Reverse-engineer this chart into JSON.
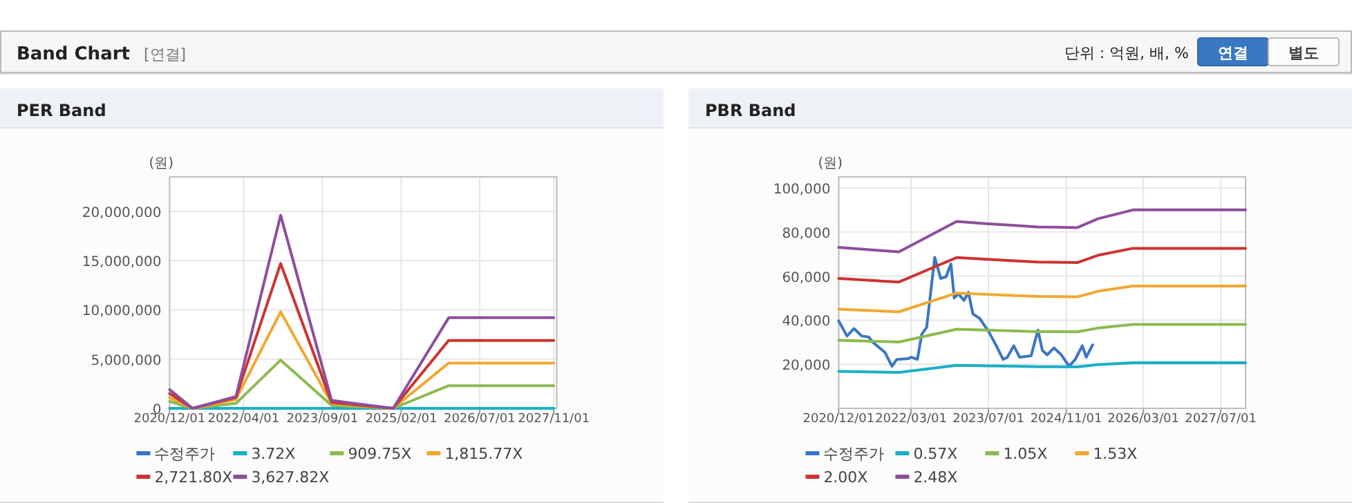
{
  "chart_data": [
    {
      "type": "other",
      "title": "Band Chart",
      "subtitle": "[연결]",
      "annotations": [
        "단위 : 억원, 배, %",
        "연결",
        "별도"
      ]
    },
    {
      "type": "line",
      "title": "PER Band",
      "ylabel": "(원)",
      "legend": "bottom",
      "grid": true,
      "xlim": [
        "2020-12-01",
        "2027-11-20"
      ],
      "xticks": [
        {
          "value": "2020-12-01",
          "label": "2020/12/01"
        },
        {
          "value": "2022-04-01",
          "label": "2022/04/01"
        },
        {
          "value": "2023-09-01",
          "label": "2023/09/01"
        },
        {
          "value": "2025-02-01",
          "label": "2025/02/01"
        },
        {
          "value": "2026-07-01",
          "label": "2026/07/01"
        },
        {
          "value": "2027-11-01",
          "label": "2027/11/01"
        }
      ],
      "ylim": [
        0,
        23500000
      ],
      "yticks": [
        {
          "value": 0,
          "label": "0"
        },
        {
          "value": 5000000,
          "label": "5,000,000"
        },
        {
          "value": 10000000,
          "label": "10,000,000"
        },
        {
          "value": 15000000,
          "label": "15,000,000"
        },
        {
          "value": 20000000,
          "label": "20,000,000"
        }
      ],
      "series": [
        {
          "name": "수정주가",
          "color": "#3b75c4"
        },
        {
          "name": "3.72X",
          "color": "#1aafc6",
          "x": [
            "2020-12-01",
            "2027-11-01"
          ],
          "values": [
            0,
            0
          ]
        },
        {
          "name": "909.75X",
          "color": "#8cba4f",
          "x": [
            "2020-12-01",
            "2021-05-01",
            "2022-02-10",
            "2022-12-01",
            "2023-11-01",
            "2024-12-10",
            "2025-12-10",
            "2027-11-01"
          ],
          "values": [
            700000,
            0,
            500000,
            4900000,
            300000,
            0,
            2300000,
            2300000
          ]
        },
        {
          "name": "1,815.77X",
          "color": "#f0a830",
          "x": [
            "2020-12-01",
            "2021-05-01",
            "2022-02-10",
            "2022-12-01",
            "2023-11-01",
            "2024-12-10",
            "2025-12-10",
            "2027-11-01"
          ],
          "values": [
            1100000,
            0,
            900000,
            9800000,
            500000,
            0,
            4600000,
            4600000
          ]
        },
        {
          "name": "2,721.80X",
          "color": "#cc3330",
          "x": [
            "2020-12-01",
            "2021-05-01",
            "2022-02-10",
            "2022-12-01",
            "2023-11-01",
            "2024-12-10",
            "2025-12-10",
            "2027-11-01"
          ],
          "values": [
            1500000,
            0,
            1100000,
            14700000,
            600000,
            0,
            6900000,
            6900000
          ]
        },
        {
          "name": "3,627.82X",
          "color": "#8e4e9c",
          "x": [
            "2020-12-01",
            "2021-05-01",
            "2022-02-10",
            "2022-12-01",
            "2023-11-01",
            "2024-12-10",
            "2025-12-10",
            "2027-11-01"
          ],
          "values": [
            1900000,
            0,
            1200000,
            19600000,
            800000,
            0,
            9200000,
            9200000
          ]
        }
      ]
    },
    {
      "type": "line",
      "title": "PBR Band",
      "ylabel": "(원)",
      "legend": "bottom",
      "grid": true,
      "xlim": [
        "2020-12-01",
        "2027-12-04"
      ],
      "xticks": [
        {
          "value": "2020-12-01",
          "label": "2020/12/01"
        },
        {
          "value": "2022-03-01",
          "label": "2022/03/01"
        },
        {
          "value": "2023-07-01",
          "label": "2023/07/01"
        },
        {
          "value": "2024-11-01",
          "label": "2024/11/01"
        },
        {
          "value": "2026-03-01",
          "label": "2026/03/01"
        },
        {
          "value": "2027-07-01",
          "label": "2027/07/01"
        }
      ],
      "ylim": [
        0,
        105000
      ],
      "yticks": [
        {
          "value": 20000,
          "label": "20,000"
        },
        {
          "value": 40000,
          "label": "40,000"
        },
        {
          "value": 60000,
          "label": "60,000"
        },
        {
          "value": 80000,
          "label": "80,000"
        },
        {
          "value": 100000,
          "label": "100,000"
        }
      ],
      "series": [
        {
          "name": "수정주가",
          "color": "#3b75c4",
          "x": [
            "2020-12-01",
            "2021-01-22",
            "2021-03-07",
            "2021-04-25",
            "2021-06-07",
            "2021-07-07",
            "2021-09-19",
            "2021-11-01",
            "2021-12-01",
            "2022-02-13",
            "2022-02-28",
            "2022-04-10",
            "2022-05-07",
            "2022-06-07",
            "2022-07-28",
            "2022-09-04",
            "2022-10-07",
            "2022-11-07",
            "2022-11-28",
            "2022-12-22",
            "2023-01-28",
            "2023-02-25",
            "2023-03-25",
            "2023-05-07",
            "2023-07-04",
            "2023-08-19",
            "2023-10-01",
            "2023-10-28",
            "2023-12-07",
            "2024-01-13",
            "2024-03-25",
            "2024-05-07",
            "2024-06-04",
            "2024-07-04",
            "2024-08-16",
            "2024-10-01",
            "2024-11-19",
            "2024-12-28",
            "2025-02-10",
            "2025-03-07",
            "2025-04-16"
          ],
          "values": [
            39700,
            32800,
            36200,
            32800,
            32400,
            29800,
            25300,
            19100,
            22200,
            22600,
            23200,
            22200,
            33600,
            36700,
            68500,
            58900,
            59700,
            65500,
            50000,
            52000,
            49000,
            52600,
            42800,
            40800,
            34600,
            28400,
            22200,
            23200,
            28400,
            23200,
            23800,
            35500,
            26300,
            24300,
            27400,
            24300,
            19100,
            22200,
            28400,
            23200,
            28800
          ]
        },
        {
          "name": "0.57X",
          "color": "#1aafc6",
          "x": [
            "2020-12-01",
            "2021-12-15",
            "2022-12-13",
            "2023-06-19",
            "2023-12-13",
            "2024-05-07",
            "2025-01-10",
            "2025-05-19",
            "2025-12-25",
            "2027-12-04"
          ],
          "values": [
            16800,
            16300,
            19500,
            19300,
            19100,
            18900,
            18800,
            19800,
            20700,
            20700
          ]
        },
        {
          "name": "1.05X",
          "color": "#8cba4f",
          "x": [
            "2020-12-01",
            "2021-12-15",
            "2022-12-13",
            "2023-06-19",
            "2023-12-13",
            "2024-05-07",
            "2025-01-10",
            "2025-05-19",
            "2025-12-25",
            "2027-12-04"
          ],
          "values": [
            30900,
            30100,
            35900,
            35500,
            35100,
            34800,
            34700,
            36400,
            38100,
            38100
          ]
        },
        {
          "name": "1.53X",
          "color": "#f0a830",
          "x": [
            "2020-12-01",
            "2021-12-15",
            "2022-12-13",
            "2023-06-19",
            "2023-12-13",
            "2024-05-07",
            "2025-01-10",
            "2025-05-19",
            "2025-12-25",
            "2027-12-04"
          ],
          "values": [
            45000,
            43800,
            52300,
            51700,
            51200,
            50800,
            50600,
            53100,
            55500,
            55500
          ]
        },
        {
          "name": "2.00X",
          "color": "#cc3330",
          "x": [
            "2020-12-01",
            "2021-12-15",
            "2022-12-13",
            "2023-06-19",
            "2023-12-13",
            "2024-05-07",
            "2025-01-10",
            "2025-05-19",
            "2025-12-25",
            "2027-12-04"
          ],
          "values": [
            58900,
            57300,
            68400,
            67600,
            66900,
            66400,
            66100,
            69400,
            72600,
            72600
          ]
        },
        {
          "name": "2.48X",
          "color": "#8e4e9c",
          "x": [
            "2020-12-01",
            "2021-12-15",
            "2022-12-13",
            "2023-06-19",
            "2023-12-13",
            "2024-05-07",
            "2025-01-10",
            "2025-05-19",
            "2025-12-25",
            "2027-12-04"
          ],
          "values": [
            73000,
            71000,
            84800,
            83800,
            83000,
            82300,
            82000,
            86000,
            90000,
            90000
          ]
        }
      ]
    }
  ]
}
